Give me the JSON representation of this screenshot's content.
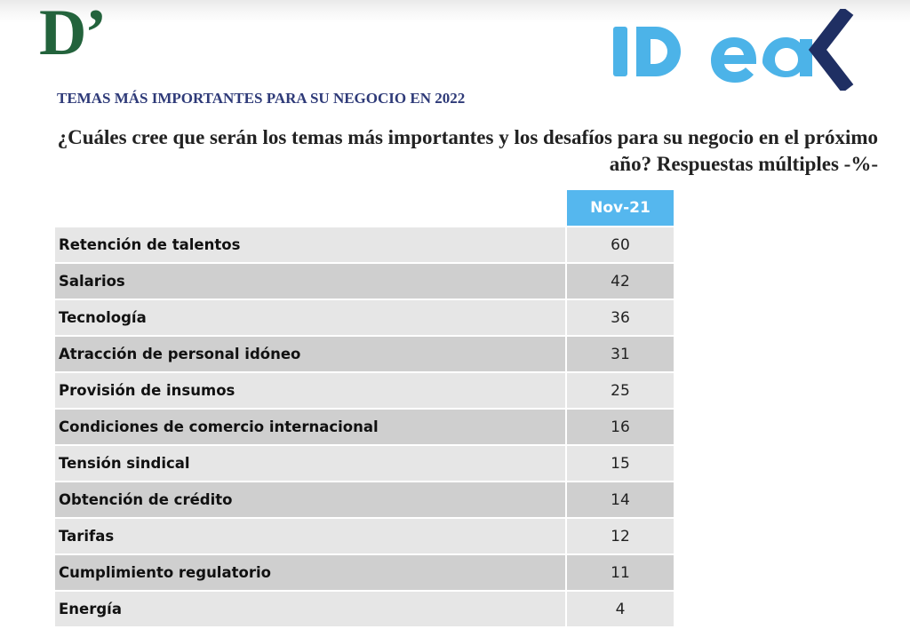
{
  "header": {
    "left_logo_text": "D’",
    "right_logo_text": "IDEA",
    "section_title": "TEMAS MÁS IMPORTANTES PARA SU NEGOCIO EN 2022",
    "question": "¿Cuáles cree que serán los temas más importantes y los desafíos para su negocio en el próximo año? Respuestas múltiples -%-"
  },
  "colors": {
    "d_logo": "#23633c",
    "idea_logo": "#4cb3e8",
    "idea_chevron": "#1f2f63",
    "title": "#2e3a78",
    "header_cell": "#55b7ee",
    "row_light": "#e6e6e6",
    "row_dark": "#cfcfcf"
  },
  "table": {
    "column_header": "Nov-21",
    "rows": [
      {
        "label": "Retención de talentos",
        "value": "60"
      },
      {
        "label": "Salarios",
        "value": "42"
      },
      {
        "label": "Tecnología",
        "value": "36"
      },
      {
        "label": "Atracción de personal idóneo",
        "value": "31"
      },
      {
        "label": "Provisión de insumos",
        "value": "25"
      },
      {
        "label": "Condiciones de comercio internacional",
        "value": "16"
      },
      {
        "label": "Tensión sindical",
        "value": "15"
      },
      {
        "label": "Obtención de crédito",
        "value": "14"
      },
      {
        "label": "Tarifas",
        "value": "12"
      },
      {
        "label": "Cumplimiento regulatorio",
        "value": "11"
      },
      {
        "label": "Energía",
        "value": "4"
      }
    ]
  }
}
